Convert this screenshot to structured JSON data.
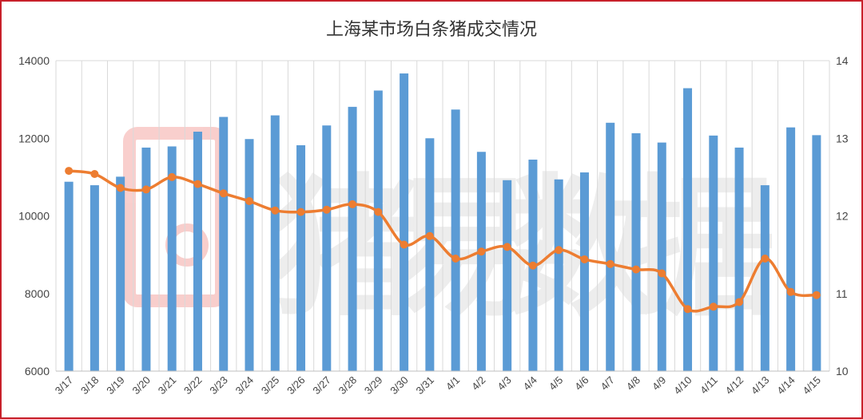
{
  "chart_data": {
    "type": "bar",
    "title": "上海某市场白条猪成交情况",
    "categories": [
      "3/17",
      "3/18",
      "3/19",
      "3/20",
      "3/21",
      "3/22",
      "3/23",
      "3/24",
      "3/25",
      "3/26",
      "3/27",
      "3/28",
      "3/29",
      "3/30",
      "3/31",
      "4/1",
      "4/2",
      "4/3",
      "4/4",
      "4/5",
      "4/6",
      "4/7",
      "4/8",
      "4/9",
      "4/10",
      "4/11",
      "4/12",
      "4/13",
      "4/14",
      "4/15"
    ],
    "series": [
      {
        "type": "bar",
        "axis": "left",
        "values": [
          10880,
          10790,
          11010,
          11760,
          11790,
          12170,
          12550,
          11980,
          12590,
          11820,
          12330,
          12810,
          13230,
          13670,
          12000,
          12740,
          11650,
          10920,
          11450,
          10940,
          11120,
          12400,
          12130,
          11890,
          13290,
          12070,
          11760,
          10790,
          12280,
          12080
        ],
        "color": "#5b9bd5"
      },
      {
        "type": "line",
        "axis": "right",
        "values": [
          12.58,
          12.54,
          12.36,
          12.34,
          12.5,
          12.41,
          12.29,
          12.19,
          12.07,
          12.05,
          12.08,
          12.15,
          12.05,
          11.63,
          11.74,
          11.45,
          11.54,
          11.6,
          11.36,
          11.56,
          11.44,
          11.38,
          11.31,
          11.26,
          10.8,
          10.83,
          10.89,
          11.45,
          11.02,
          10.98
        ],
        "color": "#ed7d31"
      }
    ],
    "y_left": {
      "min": 6000,
      "max": 14000,
      "ticks": [
        6000,
        8000,
        10000,
        12000,
        14000
      ]
    },
    "y_right": {
      "min": 10,
      "max": 14,
      "ticks": [
        10,
        11,
        12,
        13,
        14
      ]
    },
    "grid": "vertical"
  },
  "watermark": {
    "text": "猪易数据",
    "color": "#bfbfbf",
    "accent": "#e8524a"
  }
}
